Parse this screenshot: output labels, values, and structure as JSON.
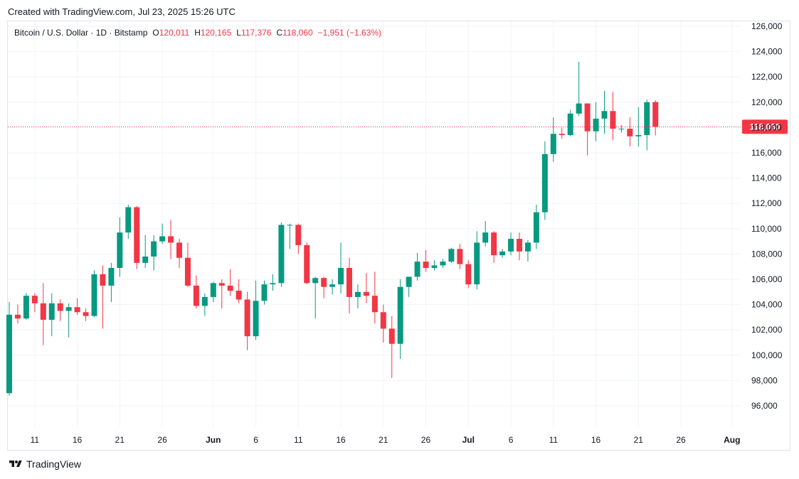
{
  "header": {
    "created_text": "Created with TradingView.com, Jul 23, 2025 15:26 UTC"
  },
  "legend": {
    "symbol": "Bitcoin / U.S. Dollar · 1D · Bitstamp",
    "o_label": "O",
    "o_value": "120,011",
    "h_label": "H",
    "h_value": "120,165",
    "l_label": "L",
    "l_value": "117,376",
    "c_label": "C",
    "c_value": "118,060",
    "change": "−1,951 (−1.63%)"
  },
  "last_price_label": "118,060",
  "footer": {
    "brand": "TradingView"
  },
  "colors": {
    "up": "#089981",
    "down": "#f23645",
    "grid": "#f0f3fa",
    "text": "#131722"
  },
  "chart_data": {
    "type": "candlestick",
    "title": "Bitcoin / U.S. Dollar · 1D · Bitstamp",
    "ylim": [
      94000,
      127000
    ],
    "yticks": [
      96000,
      98000,
      100000,
      102000,
      104000,
      106000,
      108000,
      110000,
      112000,
      114000,
      116000,
      118000,
      120000,
      122000,
      124000,
      126000
    ],
    "ytick_labels": [
      "96,000",
      "98,000",
      "100,000",
      "102,000",
      "104,000",
      "106,000",
      "108,000",
      "110,000",
      "112,000",
      "114,000",
      "116,000",
      "118,000",
      "120,000",
      "122,000",
      "124,000",
      "126,000"
    ],
    "xlim": [
      "2025-05-08",
      "2025-08-03"
    ],
    "xticks": [
      {
        "date": "2025-05-11",
        "label": "11"
      },
      {
        "date": "2025-05-16",
        "label": "16"
      },
      {
        "date": "2025-05-21",
        "label": "21"
      },
      {
        "date": "2025-05-26",
        "label": "26"
      },
      {
        "date": "2025-06-01",
        "label": "Jun",
        "bold": true
      },
      {
        "date": "2025-06-06",
        "label": "6"
      },
      {
        "date": "2025-06-11",
        "label": "11"
      },
      {
        "date": "2025-06-16",
        "label": "16"
      },
      {
        "date": "2025-06-21",
        "label": "21"
      },
      {
        "date": "2025-06-26",
        "label": "26"
      },
      {
        "date": "2025-07-01",
        "label": "Jul",
        "bold": true
      },
      {
        "date": "2025-07-06",
        "label": "6"
      },
      {
        "date": "2025-07-11",
        "label": "11"
      },
      {
        "date": "2025-07-16",
        "label": "16"
      },
      {
        "date": "2025-07-21",
        "label": "21"
      },
      {
        "date": "2025-07-26",
        "label": "26"
      },
      {
        "date": "2025-08-01",
        "label": "Aug",
        "bold": true
      }
    ],
    "last_price": 118060,
    "candles": [
      {
        "date": "2025-05-08",
        "o": 97000,
        "h": 104200,
        "l": 96800,
        "c": 103200
      },
      {
        "date": "2025-05-09",
        "o": 103200,
        "h": 104000,
        "l": 102500,
        "c": 102900
      },
      {
        "date": "2025-05-10",
        "o": 102900,
        "h": 104900,
        "l": 102800,
        "c": 104700
      },
      {
        "date": "2025-05-11",
        "o": 104700,
        "h": 104900,
        "l": 103400,
        "c": 104100
      },
      {
        "date": "2025-05-12",
        "o": 104100,
        "h": 105700,
        "l": 100800,
        "c": 102800
      },
      {
        "date": "2025-05-13",
        "o": 102800,
        "h": 104900,
        "l": 101500,
        "c": 104100
      },
      {
        "date": "2025-05-14",
        "o": 104100,
        "h": 104400,
        "l": 102700,
        "c": 103500
      },
      {
        "date": "2025-05-15",
        "o": 103500,
        "h": 104100,
        "l": 101400,
        "c": 103800
      },
      {
        "date": "2025-05-16",
        "o": 103800,
        "h": 104500,
        "l": 103200,
        "c": 103400
      },
      {
        "date": "2025-05-17",
        "o": 103400,
        "h": 103700,
        "l": 102700,
        "c": 103100
      },
      {
        "date": "2025-05-18",
        "o": 103100,
        "h": 106700,
        "l": 103000,
        "c": 106400
      },
      {
        "date": "2025-05-19",
        "o": 106400,
        "h": 107100,
        "l": 102100,
        "c": 105500
      },
      {
        "date": "2025-05-20",
        "o": 105500,
        "h": 107300,
        "l": 104200,
        "c": 106900
      },
      {
        "date": "2025-05-21",
        "o": 106900,
        "h": 110900,
        "l": 106200,
        "c": 109700
      },
      {
        "date": "2025-05-22",
        "o": 109700,
        "h": 111900,
        "l": 109200,
        "c": 111700
      },
      {
        "date": "2025-05-23",
        "o": 111700,
        "h": 111800,
        "l": 106800,
        "c": 107300
      },
      {
        "date": "2025-05-24",
        "o": 107300,
        "h": 109500,
        "l": 106900,
        "c": 107800
      },
      {
        "date": "2025-05-25",
        "o": 107800,
        "h": 109500,
        "l": 106700,
        "c": 109000
      },
      {
        "date": "2025-05-26",
        "o": 109000,
        "h": 110400,
        "l": 108800,
        "c": 109400
      },
      {
        "date": "2025-05-27",
        "o": 109400,
        "h": 110700,
        "l": 107600,
        "c": 108900
      },
      {
        "date": "2025-05-28",
        "o": 108900,
        "h": 109200,
        "l": 106900,
        "c": 107700
      },
      {
        "date": "2025-05-29",
        "o": 107700,
        "h": 108900,
        "l": 105400,
        "c": 105500
      },
      {
        "date": "2025-05-30",
        "o": 105500,
        "h": 106300,
        "l": 103700,
        "c": 103900
      },
      {
        "date": "2025-05-31",
        "o": 103900,
        "h": 104900,
        "l": 103100,
        "c": 104600
      },
      {
        "date": "2025-06-01",
        "o": 104600,
        "h": 105800,
        "l": 104200,
        "c": 105700
      },
      {
        "date": "2025-06-02",
        "o": 105700,
        "h": 106000,
        "l": 103700,
        "c": 105500
      },
      {
        "date": "2025-06-03",
        "o": 105500,
        "h": 106800,
        "l": 104700,
        "c": 105100
      },
      {
        "date": "2025-06-04",
        "o": 105100,
        "h": 106000,
        "l": 104100,
        "c": 104400
      },
      {
        "date": "2025-06-05",
        "o": 104400,
        "h": 105000,
        "l": 100400,
        "c": 101500
      },
      {
        "date": "2025-06-06",
        "o": 101500,
        "h": 105900,
        "l": 101200,
        "c": 104300
      },
      {
        "date": "2025-06-07",
        "o": 104300,
        "h": 105900,
        "l": 104000,
        "c": 105600
      },
      {
        "date": "2025-06-08",
        "o": 105600,
        "h": 106400,
        "l": 105100,
        "c": 105700
      },
      {
        "date": "2025-06-09",
        "o": 105700,
        "h": 110500,
        "l": 105400,
        "c": 110300
      },
      {
        "date": "2025-06-10",
        "o": 110300,
        "h": 110400,
        "l": 108400,
        "c": 110300
      },
      {
        "date": "2025-06-11",
        "o": 110300,
        "h": 110400,
        "l": 108000,
        "c": 108700
      },
      {
        "date": "2025-06-12",
        "o": 108700,
        "h": 108900,
        "l": 105600,
        "c": 105700
      },
      {
        "date": "2025-06-13",
        "o": 105700,
        "h": 106200,
        "l": 102900,
        "c": 106100
      },
      {
        "date": "2025-06-14",
        "o": 106100,
        "h": 106200,
        "l": 104500,
        "c": 105400
      },
      {
        "date": "2025-06-15",
        "o": 105400,
        "h": 106000,
        "l": 104800,
        "c": 105600
      },
      {
        "date": "2025-06-16",
        "o": 105600,
        "h": 108900,
        "l": 104900,
        "c": 106900
      },
      {
        "date": "2025-06-17",
        "o": 106900,
        "h": 107700,
        "l": 103300,
        "c": 104600
      },
      {
        "date": "2025-06-18",
        "o": 104600,
        "h": 105600,
        "l": 103700,
        "c": 105000
      },
      {
        "date": "2025-06-19",
        "o": 105000,
        "h": 106500,
        "l": 104100,
        "c": 104700
      },
      {
        "date": "2025-06-20",
        "o": 104700,
        "h": 106600,
        "l": 102500,
        "c": 103400
      },
      {
        "date": "2025-06-21",
        "o": 103400,
        "h": 104000,
        "l": 101000,
        "c": 102100
      },
      {
        "date": "2025-06-22",
        "o": 102100,
        "h": 103100,
        "l": 98200,
        "c": 100900
      },
      {
        "date": "2025-06-23",
        "o": 100900,
        "h": 106000,
        "l": 99700,
        "c": 105400
      },
      {
        "date": "2025-06-24",
        "o": 105400,
        "h": 106200,
        "l": 104600,
        "c": 106200
      },
      {
        "date": "2025-06-25",
        "o": 106200,
        "h": 108100,
        "l": 105900,
        "c": 107400
      },
      {
        "date": "2025-06-26",
        "o": 107400,
        "h": 108300,
        "l": 106600,
        "c": 106900
      },
      {
        "date": "2025-06-27",
        "o": 106900,
        "h": 107500,
        "l": 106700,
        "c": 107100
      },
      {
        "date": "2025-06-28",
        "o": 107100,
        "h": 107600,
        "l": 106900,
        "c": 107400
      },
      {
        "date": "2025-06-29",
        "o": 107400,
        "h": 108500,
        "l": 107300,
        "c": 108400
      },
      {
        "date": "2025-06-30",
        "o": 108400,
        "h": 108800,
        "l": 106800,
        "c": 107200
      },
      {
        "date": "2025-07-01",
        "o": 107200,
        "h": 107500,
        "l": 105300,
        "c": 105600
      },
      {
        "date": "2025-07-02",
        "o": 105600,
        "h": 109800,
        "l": 105200,
        "c": 108900
      },
      {
        "date": "2025-07-03",
        "o": 108900,
        "h": 110600,
        "l": 108600,
        "c": 109700
      },
      {
        "date": "2025-07-04",
        "o": 109700,
        "h": 109800,
        "l": 107300,
        "c": 107900
      },
      {
        "date": "2025-07-05",
        "o": 107900,
        "h": 108400,
        "l": 107700,
        "c": 108200
      },
      {
        "date": "2025-07-06",
        "o": 108200,
        "h": 109700,
        "l": 107900,
        "c": 109200
      },
      {
        "date": "2025-07-07",
        "o": 109200,
        "h": 109700,
        "l": 107500,
        "c": 108200
      },
      {
        "date": "2025-07-08",
        "o": 108200,
        "h": 109100,
        "l": 107400,
        "c": 108900
      },
      {
        "date": "2025-07-09",
        "o": 108900,
        "h": 111900,
        "l": 108400,
        "c": 111300
      },
      {
        "date": "2025-07-10",
        "o": 111300,
        "h": 116900,
        "l": 110700,
        "c": 115900
      },
      {
        "date": "2025-07-11",
        "o": 115900,
        "h": 118800,
        "l": 115300,
        "c": 117500
      },
      {
        "date": "2025-07-12",
        "o": 117500,
        "h": 118000,
        "l": 117100,
        "c": 117400
      },
      {
        "date": "2025-07-13",
        "o": 117400,
        "h": 119400,
        "l": 117300,
        "c": 119100
      },
      {
        "date": "2025-07-14",
        "o": 119100,
        "h": 123200,
        "l": 118900,
        "c": 119900
      },
      {
        "date": "2025-07-15",
        "o": 119900,
        "h": 119900,
        "l": 115800,
        "c": 117700
      },
      {
        "date": "2025-07-16",
        "o": 117700,
        "h": 120000,
        "l": 116900,
        "c": 118700
      },
      {
        "date": "2025-07-17",
        "o": 118700,
        "h": 120900,
        "l": 117500,
        "c": 119300
      },
      {
        "date": "2025-07-18",
        "o": 119300,
        "h": 120800,
        "l": 117000,
        "c": 117900
      },
      {
        "date": "2025-07-19",
        "o": 117900,
        "h": 118200,
        "l": 117600,
        "c": 117900
      },
      {
        "date": "2025-07-20",
        "o": 117900,
        "h": 118800,
        "l": 116500,
        "c": 117300
      },
      {
        "date": "2025-07-21",
        "o": 117300,
        "h": 119600,
        "l": 116500,
        "c": 117400
      },
      {
        "date": "2025-07-22",
        "o": 117400,
        "h": 120200,
        "l": 116200,
        "c": 120000
      },
      {
        "date": "2025-07-23",
        "o": 120011,
        "h": 120165,
        "l": 117376,
        "c": 118060
      }
    ]
  }
}
